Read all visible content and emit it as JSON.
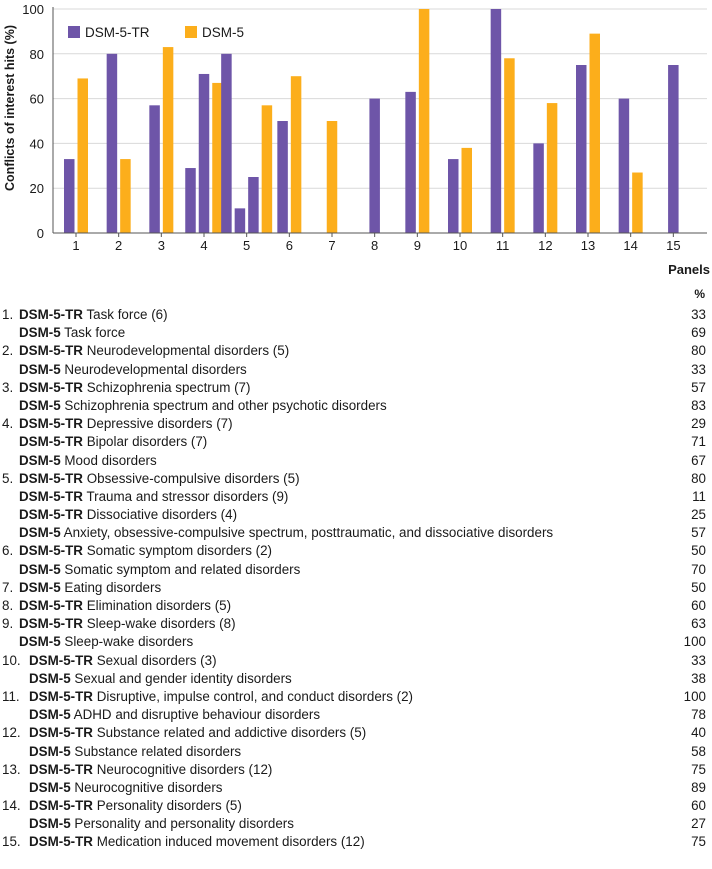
{
  "chart_data": {
    "type": "bar",
    "ylabel": "Conflicts of interest hits (%)",
    "xlabel": "Panels",
    "ylim": [
      0,
      100
    ],
    "yticks": [
      "0",
      "20",
      "40",
      "60",
      "80",
      "100"
    ],
    "legend_position": "top-left",
    "series": [
      {
        "name": "DSM-5-TR",
        "color": "#6e55a8"
      },
      {
        "name": "DSM-5",
        "color": "#fcae1b"
      }
    ],
    "groups": [
      {
        "label": "1",
        "bars": [
          {
            "series": "DSM-5-TR",
            "value": 33
          },
          {
            "series": "DSM-5",
            "value": 69
          }
        ]
      },
      {
        "label": "2",
        "bars": [
          {
            "series": "DSM-5-TR",
            "value": 80
          },
          {
            "series": "DSM-5",
            "value": 33
          }
        ]
      },
      {
        "label": "3",
        "bars": [
          {
            "series": "DSM-5-TR",
            "value": 57
          },
          {
            "series": "DSM-5",
            "value": 83
          }
        ]
      },
      {
        "label": "4",
        "bars": [
          {
            "series": "DSM-5-TR",
            "value": 29
          },
          {
            "series": "DSM-5-TR",
            "value": 71
          },
          {
            "series": "DSM-5",
            "value": 67
          }
        ]
      },
      {
        "label": "5",
        "bars": [
          {
            "series": "DSM-5-TR",
            "value": 80
          },
          {
            "series": "DSM-5-TR",
            "value": 11
          },
          {
            "series": "DSM-5-TR",
            "value": 25
          },
          {
            "series": "DSM-5",
            "value": 57
          }
        ]
      },
      {
        "label": "6",
        "bars": [
          {
            "series": "DSM-5-TR",
            "value": 50
          },
          {
            "series": "DSM-5",
            "value": 70
          }
        ]
      },
      {
        "label": "7",
        "bars": [
          {
            "series": "DSM-5",
            "value": 50
          }
        ]
      },
      {
        "label": "8",
        "bars": [
          {
            "series": "DSM-5-TR",
            "value": 60
          }
        ]
      },
      {
        "label": "9",
        "bars": [
          {
            "series": "DSM-5-TR",
            "value": 63
          },
          {
            "series": "DSM-5",
            "value": 100
          }
        ]
      },
      {
        "label": "10",
        "bars": [
          {
            "series": "DSM-5-TR",
            "value": 33
          },
          {
            "series": "DSM-5",
            "value": 38
          }
        ]
      },
      {
        "label": "11",
        "bars": [
          {
            "series": "DSM-5-TR",
            "value": 100
          },
          {
            "series": "DSM-5",
            "value": 78
          }
        ]
      },
      {
        "label": "12",
        "bars": [
          {
            "series": "DSM-5-TR",
            "value": 40
          },
          {
            "series": "DSM-5",
            "value": 58
          }
        ]
      },
      {
        "label": "13",
        "bars": [
          {
            "series": "DSM-5-TR",
            "value": 75
          },
          {
            "series": "DSM-5",
            "value": 89
          }
        ]
      },
      {
        "label": "14",
        "bars": [
          {
            "series": "DSM-5-TR",
            "value": 60
          },
          {
            "series": "DSM-5",
            "value": 27
          }
        ]
      },
      {
        "label": "15",
        "bars": [
          {
            "series": "DSM-5-TR",
            "value": 75
          }
        ]
      }
    ]
  },
  "table": {
    "panels_label": "Panels",
    "pct_header": "%",
    "rows": [
      {
        "num": "1.",
        "bold": "DSM-5-TR",
        "text": "Task force (6)",
        "value": "33"
      },
      {
        "num": "",
        "bold": "DSM-5",
        "text": "Task force",
        "value": "69"
      },
      {
        "num": "2.",
        "bold": "DSM-5-TR",
        "text": "Neurodevelopmental disorders (5)",
        "value": "80"
      },
      {
        "num": "",
        "bold": "DSM-5",
        "text": "Neurodevelopmental disorders",
        "value": "33"
      },
      {
        "num": "3.",
        "bold": "DSM-5-TR",
        "text": "Schizophrenia spectrum (7)",
        "value": "57"
      },
      {
        "num": "",
        "bold": "DSM-5",
        "text": "Schizophrenia spectrum and other psychotic disorders",
        "value": "83"
      },
      {
        "num": "4.",
        "bold": "DSM-5-TR",
        "text": "Depressive disorders (7)",
        "value": "29"
      },
      {
        "num": "",
        "bold": "DSM-5-TR",
        "text": "Bipolar disorders (7)",
        "value": "71"
      },
      {
        "num": "",
        "bold": "DSM-5",
        "text": "Mood disorders",
        "value": "67"
      },
      {
        "num": "5.",
        "bold": "DSM-5-TR",
        "text": "Obsessive-compulsive disorders (5)",
        "value": "80"
      },
      {
        "num": "",
        "bold": "DSM-5-TR",
        "text": "Trauma and stressor disorders (9)",
        "value": "11"
      },
      {
        "num": "",
        "bold": "DSM-5-TR",
        "text": "Dissociative disorders (4)",
        "value": "25"
      },
      {
        "num": "",
        "bold": "DSM-5",
        "text": "Anxiety, obsessive-compulsive spectrum, posttraumatic, and dissociative disorders",
        "value": "57"
      },
      {
        "num": "6.",
        "bold": "DSM-5-TR",
        "text": "Somatic symptom disorders (2)",
        "value": "50"
      },
      {
        "num": "",
        "bold": "DSM-5",
        "text": "Somatic symptom and related disorders",
        "value": "70"
      },
      {
        "num": "7.",
        "bold": "DSM-5",
        "text": "Eating disorders",
        "value": "50"
      },
      {
        "num": "8.",
        "bold": "DSM-5-TR",
        "text": "Elimination disorders (5)",
        "value": "60"
      },
      {
        "num": "9.",
        "bold": "DSM-5-TR",
        "text": "Sleep-wake disorders (8)",
        "value": "63"
      },
      {
        "num": "",
        "bold": "DSM-5",
        "text": "Sleep-wake disorders",
        "value": "100"
      },
      {
        "num": "10.",
        "bold": "DSM-5-TR",
        "text": "Sexual disorders (3)",
        "value": "33"
      },
      {
        "num": "",
        "bold": "DSM-5",
        "text": "Sexual and gender identity disorders",
        "value": "38"
      },
      {
        "num": "11.",
        "bold": "DSM-5-TR",
        "text": "Disruptive, impulse control, and conduct disorders (2)",
        "value": "100"
      },
      {
        "num": "",
        "bold": "DSM-5",
        "text": "ADHD and disruptive behaviour disorders",
        "value": "78"
      },
      {
        "num": "12.",
        "bold": "DSM-5-TR",
        "text": "Substance related and addictive disorders (5)",
        "value": "40"
      },
      {
        "num": "",
        "bold": "DSM-5",
        "text": "Substance related disorders",
        "value": "58"
      },
      {
        "num": "13.",
        "bold": "DSM-5-TR",
        "text": "Neurocognitive disorders (12)",
        "value": "75"
      },
      {
        "num": "",
        "bold": "DSM-5",
        "text": "Neurocognitive disorders",
        "value": "89"
      },
      {
        "num": "14.",
        "bold": "DSM-5-TR",
        "text": "Personality disorders (5)",
        "value": "60"
      },
      {
        "num": "",
        "bold": "DSM-5",
        "text": "Personality and personality disorders",
        "value": "27"
      },
      {
        "num": "15.",
        "bold": "DSM-5-TR",
        "text": "Medication induced movement disorders (12)",
        "value": "75"
      }
    ]
  }
}
